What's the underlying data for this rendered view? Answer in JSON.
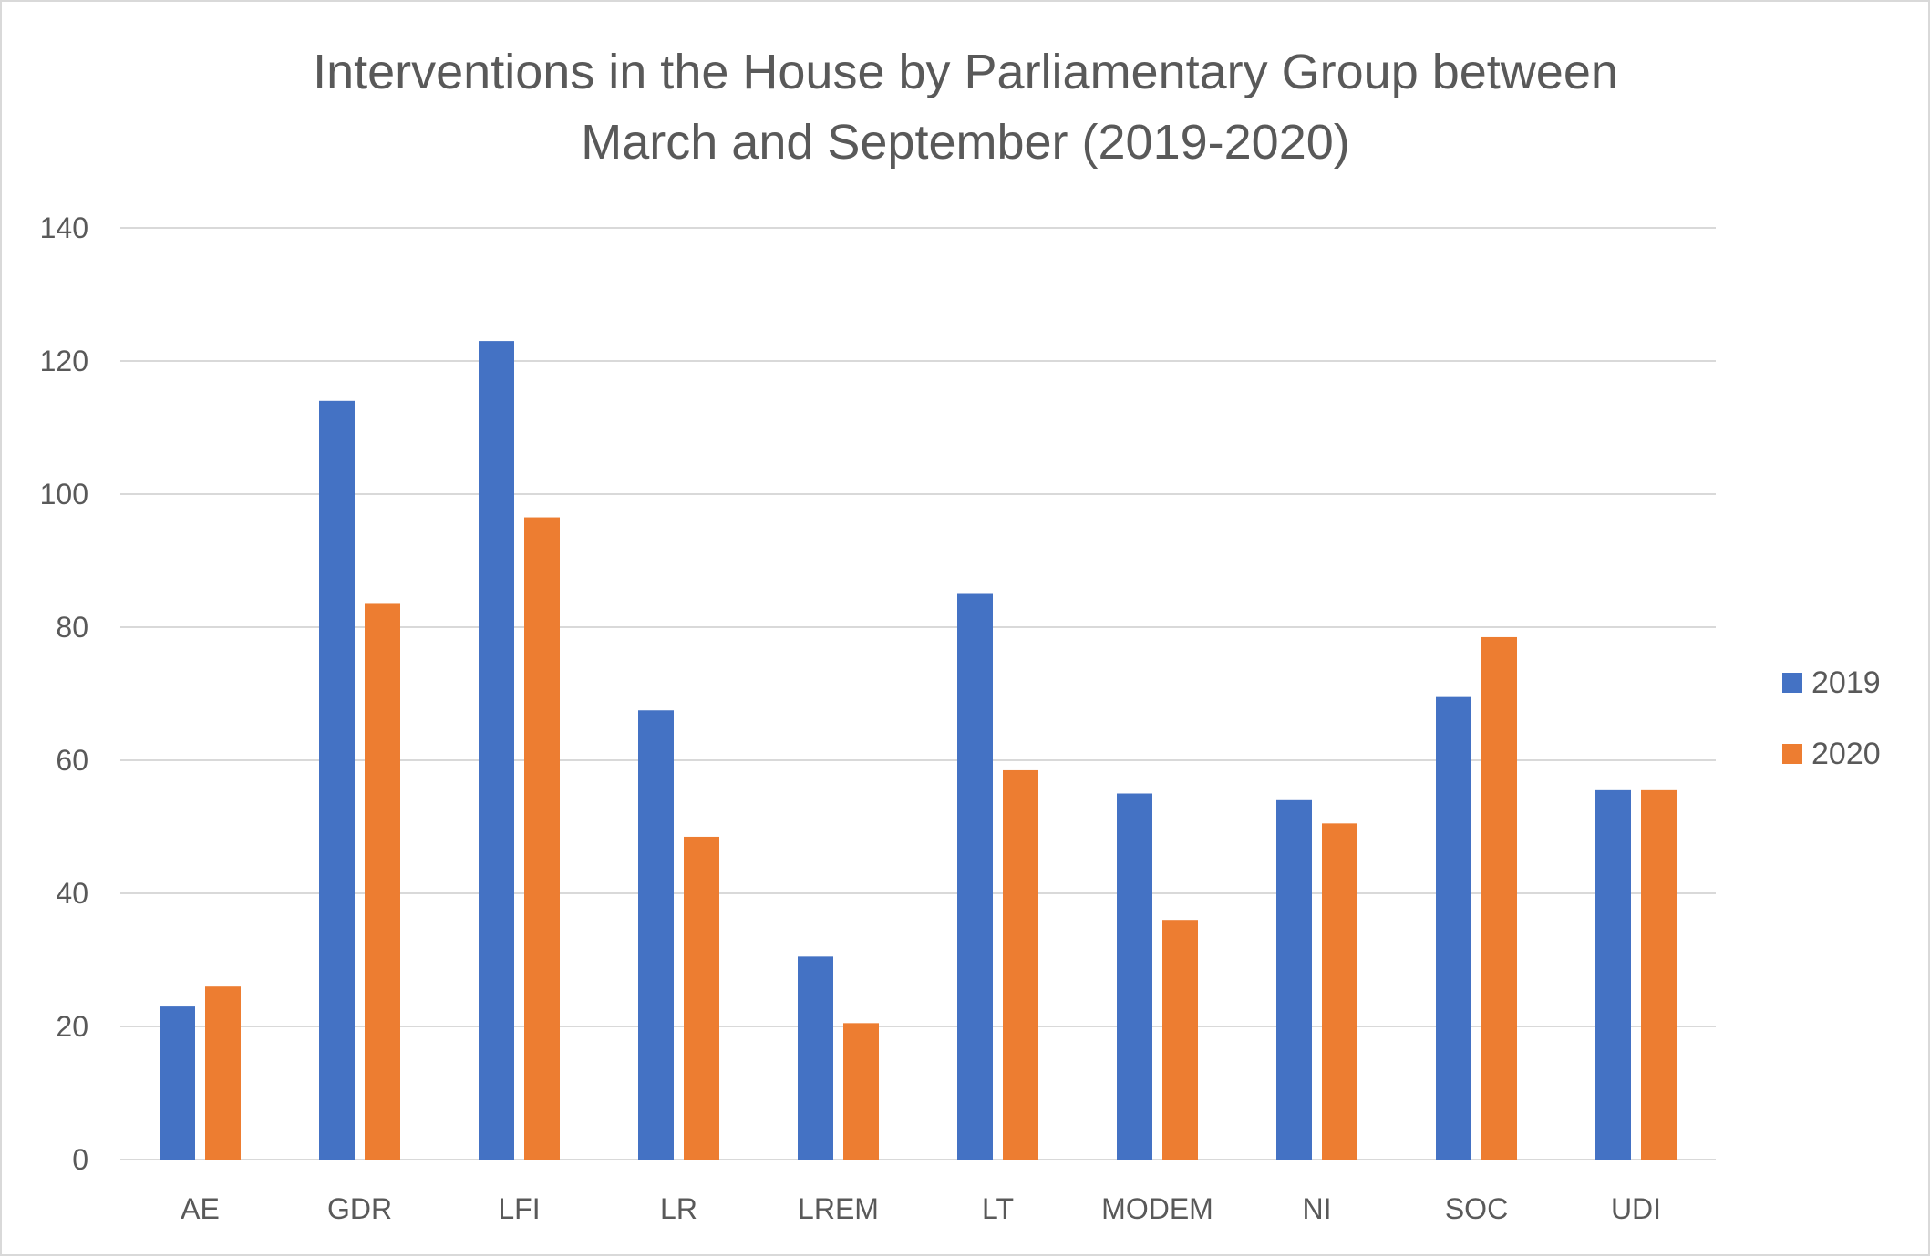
{
  "chart_data": {
    "type": "bar",
    "title_lines": [
      "Interventions in the House by Parliamentary Group between",
      "March and September (2019-2020)"
    ],
    "categories": [
      "AE",
      "GDR",
      "LFI",
      "LR",
      "LREM",
      "LT",
      "MODEM",
      "NI",
      "SOC",
      "UDI"
    ],
    "series": [
      {
        "name": "2019",
        "color": "#4472C4",
        "values": [
          23,
          114,
          123,
          67.5,
          30.5,
          85,
          55,
          54,
          69.5,
          55.5
        ]
      },
      {
        "name": "2020",
        "color": "#ED7D31",
        "values": [
          26,
          83.5,
          96.5,
          48.5,
          20.5,
          58.5,
          36,
          50.5,
          78.5,
          55.5
        ]
      }
    ],
    "ylim": [
      0,
      140
    ],
    "yticks": [
      0,
      20,
      40,
      60,
      80,
      100,
      120,
      140
    ],
    "xlabel": "",
    "ylabel": "",
    "grid": true,
    "legend_position": "right"
  }
}
